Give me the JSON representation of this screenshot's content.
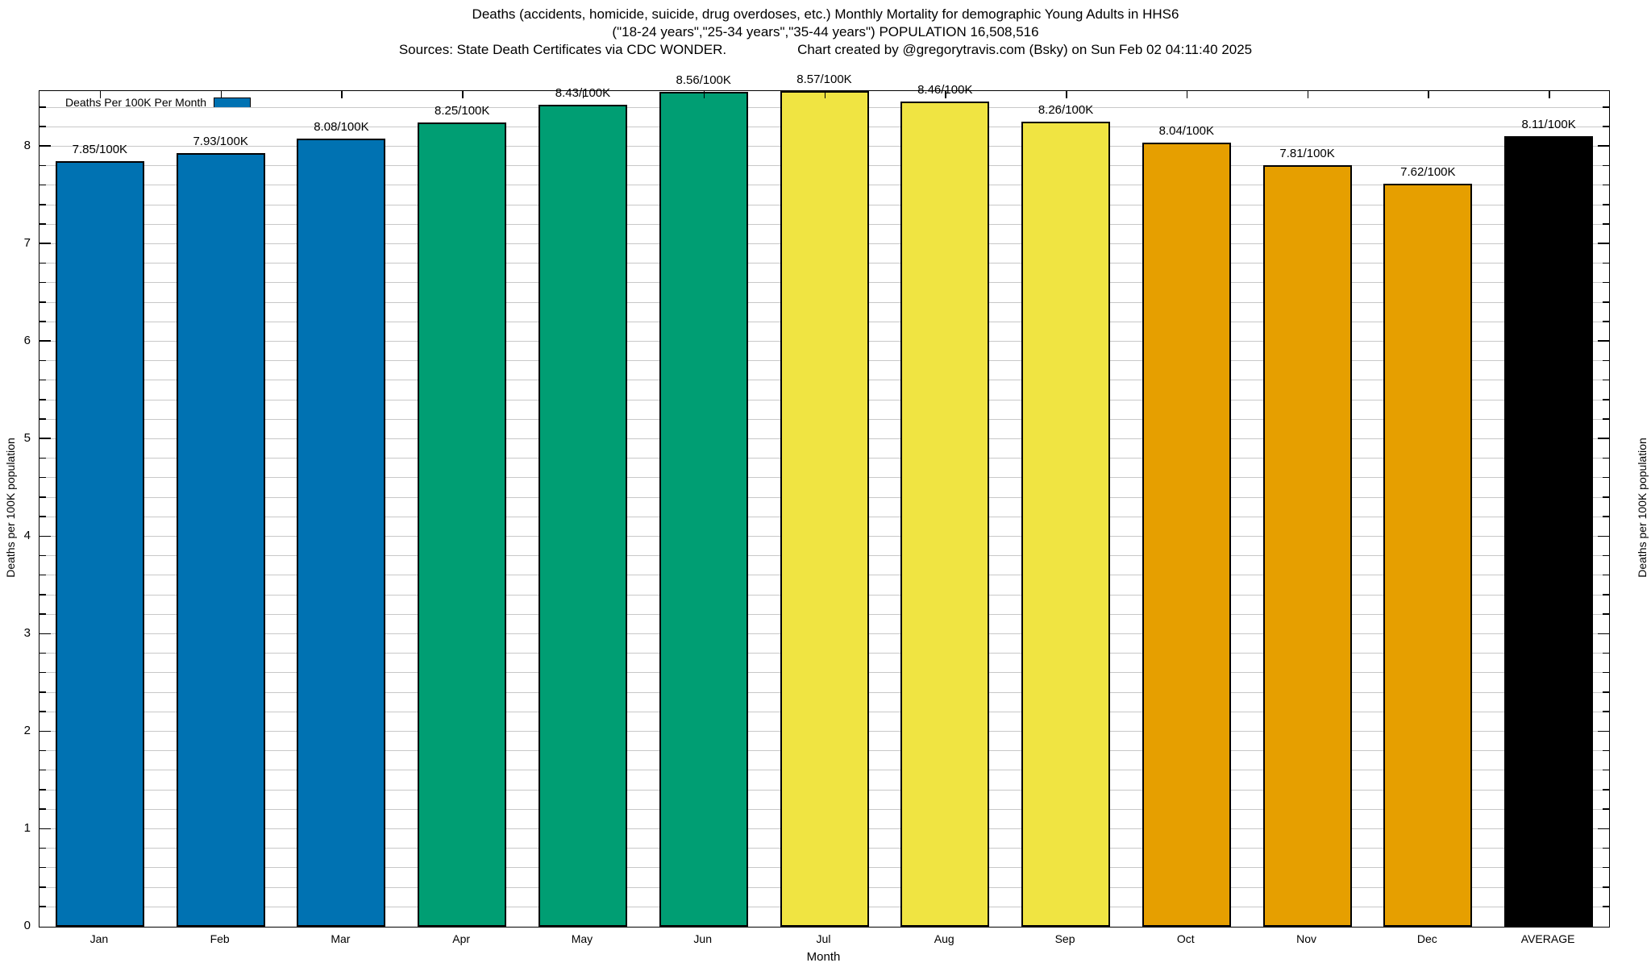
{
  "chart_data": {
    "type": "bar",
    "title": "Deaths (accidents, homicide, suicide, drug overdoses, etc.) Monthly Mortality for demographic Young Adults in HHS6",
    "subtitle": "(\"18-24 years\",\"25-34 years\",\"35-44 years\") POPULATION 16,508,516",
    "sources": "Sources: State Death Certificates via CDC WONDER.",
    "credit": "Chart created by @gregorytravis.com (Bsky) on Sun Feb 02 04:11:40 2025",
    "legend_label": "Deaths Per 100K Per Month",
    "legend_position": "top-left",
    "xlabel": "Month",
    "ylabel": "Deaths per 100K population",
    "ylabel_right": "Deaths per 100K population",
    "categories": [
      "Jan",
      "Feb",
      "Mar",
      "Apr",
      "May",
      "Jun",
      "Jul",
      "Aug",
      "Sep",
      "Oct",
      "Nov",
      "Dec",
      "AVERAGE"
    ],
    "values": [
      7.85,
      7.93,
      8.08,
      8.25,
      8.43,
      8.56,
      8.57,
      8.46,
      8.26,
      8.04,
      7.81,
      7.62,
      8.11
    ],
    "bar_labels": [
      "7.85/100K",
      "7.93/100K",
      "8.08/100K",
      "8.25/100K",
      "8.43/100K",
      "8.56/100K",
      "8.57/100K",
      "8.46/100K",
      "8.26/100K",
      "8.04/100K",
      "7.81/100K",
      "7.62/100K",
      "8.11/100K"
    ],
    "bar_colors": [
      "#0072B2",
      "#0072B2",
      "#0072B2",
      "#009E73",
      "#009E73",
      "#009E73",
      "#F0E442",
      "#F0E442",
      "#F0E442",
      "#E69F00",
      "#E69F00",
      "#E69F00",
      "#000000"
    ],
    "ylim": [
      0,
      8.57
    ],
    "ytick_labels": [
      "0",
      "1",
      "2",
      "3",
      "4",
      "5",
      "6",
      "7",
      "8"
    ],
    "minor_tick_step": 0.2,
    "grid_step": 0.2,
    "grid": true,
    "colors": {
      "blue": "#0072B2",
      "green": "#009E73",
      "yellow": "#F0E442",
      "orange": "#E69F00",
      "average": "#000000",
      "legend_swatch": "#0072B2",
      "grid": "#c8c8c8",
      "frame": "#000000",
      "background": "#ffffff",
      "text": "#000000"
    }
  }
}
